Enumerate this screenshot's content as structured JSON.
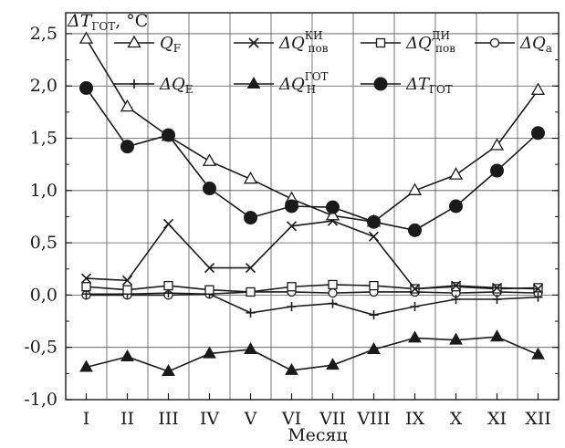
{
  "chart_data": {
    "type": "line",
    "title": "",
    "ylabel": "ΔTгот, °C",
    "xlabel": "Месяц",
    "categories": [
      "I",
      "II",
      "III",
      "IV",
      "V",
      "VI",
      "VII",
      "VIII",
      "IX",
      "X",
      "XI",
      "XII"
    ],
    "ylim": [
      -1.0,
      2.7
    ],
    "yticks": [
      "-1,0",
      "-0,5",
      "0,0",
      "0,5",
      "1,0",
      "1,5",
      "2,0",
      "2,5"
    ],
    "grid": true,
    "legend_position": "top",
    "series": [
      {
        "key": "qf",
        "name": "Q_F",
        "marker": "triangle-open",
        "values": [
          2.45,
          1.8,
          1.52,
          1.28,
          1.11,
          0.92,
          0.76,
          0.7,
          1.0,
          1.15,
          1.43,
          1.96
        ]
      },
      {
        "key": "q_pov_ki",
        "name": "ΔQ^КИ_пов",
        "marker": "x",
        "values": [
          0.16,
          0.14,
          0.68,
          0.26,
          0.26,
          0.66,
          0.71,
          0.56,
          0.06,
          0.09,
          0.07,
          0.06
        ]
      },
      {
        "key": "q_pov_di",
        "name": "ΔQ^ДИ_пов",
        "marker": "square-open",
        "values": [
          0.08,
          0.05,
          0.09,
          0.05,
          0.03,
          0.08,
          0.1,
          0.09,
          0.06,
          0.08,
          0.06,
          0.07
        ]
      },
      {
        "key": "qa",
        "name": "ΔQ_a",
        "marker": "circle-open",
        "values": [
          0.0,
          0.0,
          0.0,
          0.01,
          0.03,
          0.03,
          0.02,
          0.03,
          0.03,
          0.02,
          0.03,
          0.02
        ]
      },
      {
        "key": "qe",
        "name": "ΔQ_E",
        "marker": "plus",
        "values": [
          0.01,
          0.01,
          0.02,
          0.01,
          -0.17,
          -0.11,
          -0.08,
          -0.19,
          -0.11,
          -0.04,
          -0.04,
          -0.02
        ]
      },
      {
        "key": "qh",
        "name": "ΔQ^ГОТ_H",
        "marker": "triangle-filled",
        "values": [
          -0.69,
          -0.59,
          -0.73,
          -0.56,
          -0.52,
          -0.72,
          -0.67,
          -0.52,
          -0.41,
          -0.43,
          -0.4,
          -0.57
        ]
      },
      {
        "key": "dt",
        "name": "ΔT_ГОТ",
        "marker": "circle-filled",
        "values": [
          1.98,
          1.42,
          1.53,
          1.02,
          0.74,
          0.85,
          0.84,
          0.7,
          0.62,
          0.85,
          1.19,
          1.55
        ]
      }
    ],
    "legend": {
      "qf": {
        "main": "Q",
        "sub": "F",
        "sup": ""
      },
      "q_pov_ki": {
        "main": "ΔQ",
        "sub": "пов",
        "sup": "КИ"
      },
      "q_pov_di": {
        "main": "ΔQ",
        "sub": "пов",
        "sup": "ДИ"
      },
      "qa": {
        "main": "ΔQ",
        "sub": "a",
        "sup": ""
      },
      "qe": {
        "main": "ΔQ",
        "sub": "E",
        "sup": ""
      },
      "qh": {
        "main": "ΔQ",
        "sub": "H",
        "sup": "ГОТ"
      },
      "dt": {
        "main": "ΔT",
        "sub": "ГОТ",
        "sup": ""
      }
    },
    "ylabel_parts": {
      "main": "ΔT",
      "sub": "ГОТ",
      "tail": ", °C"
    }
  }
}
